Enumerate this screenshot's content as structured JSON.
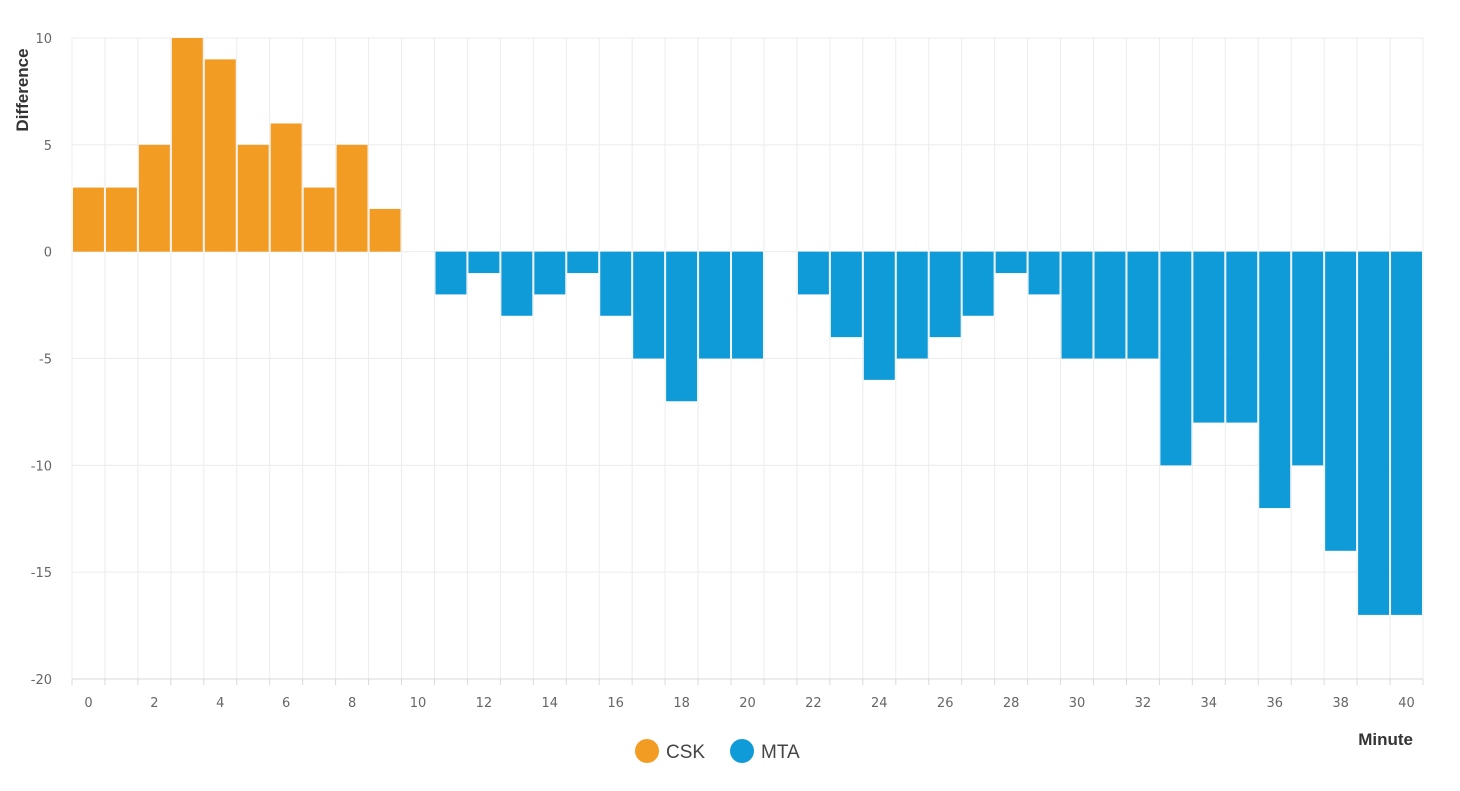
{
  "chart_data": {
    "type": "bar",
    "title": "",
    "xlabel": "Minute",
    "ylabel": "Difference",
    "ylim": [
      -20,
      10
    ],
    "xlim": [
      -0.5,
      40.5
    ],
    "y_ticks": [
      10,
      5,
      0,
      -5,
      -10,
      -15,
      -20
    ],
    "x_ticks": [
      0,
      2,
      4,
      6,
      8,
      10,
      12,
      14,
      16,
      18,
      20,
      22,
      24,
      26,
      28,
      30,
      32,
      34,
      36,
      38,
      40
    ],
    "grid": true,
    "legend_position": "bottom-center",
    "series": [
      {
        "name": "CSK",
        "color": "#F39C24",
        "x": [
          0,
          1,
          2,
          3,
          4,
          5,
          6,
          7,
          8,
          9
        ],
        "values": [
          3,
          3,
          5,
          10,
          9,
          5,
          6,
          3,
          5,
          2
        ]
      },
      {
        "name": "MTA",
        "color": "#0E9BD8",
        "x": [
          11,
          12,
          13,
          14,
          15,
          16,
          17,
          18,
          19,
          20,
          22,
          23,
          24,
          25,
          26,
          27,
          28,
          29,
          30,
          31,
          32,
          33,
          34,
          35,
          36,
          37,
          38,
          39,
          40
        ],
        "values": [
          -2,
          -1,
          -3,
          -2,
          -1,
          -3,
          -5,
          -7,
          -5,
          -5,
          -2,
          -4,
          -6,
          -5,
          -4,
          -3,
          -1,
          -2,
          -5,
          -5,
          -5,
          -10,
          -8,
          -8,
          -12,
          -10,
          -14,
          -17,
          -17
        ]
      }
    ]
  }
}
